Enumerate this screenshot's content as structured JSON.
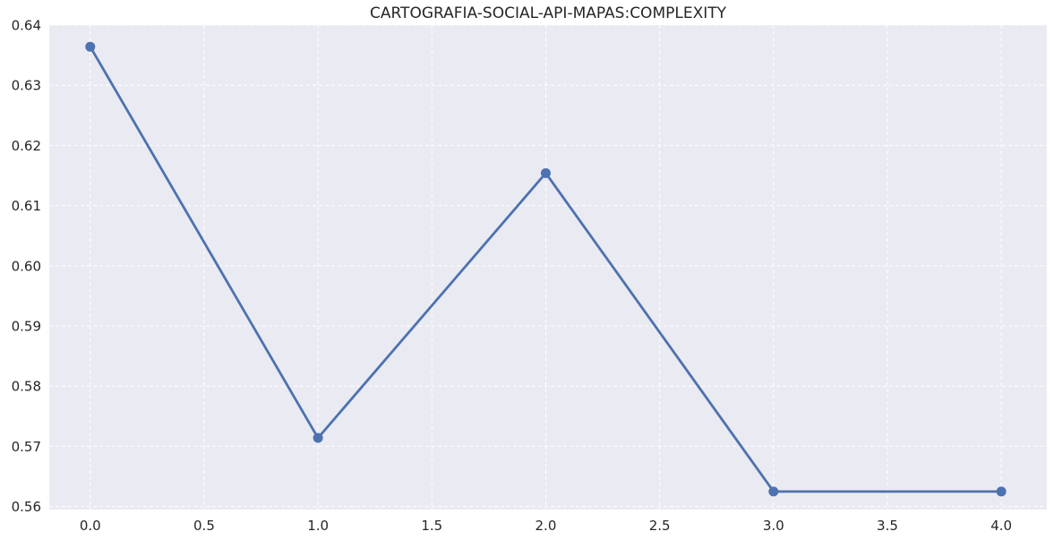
{
  "chart_data": {
    "type": "line",
    "title": "CARTOGRAFIA-SOCIAL-API-MAPAS:COMPLEXITY",
    "xlabel": "",
    "ylabel": "",
    "x": [
      0,
      1,
      2,
      3,
      4
    ],
    "series": [
      {
        "values": [
          0.6364,
          0.5714,
          0.6154,
          0.5625,
          0.5625
        ]
      }
    ],
    "xlim": [
      -0.18,
      4.2
    ],
    "ylim": [
      0.5595,
      0.64
    ],
    "xticks": [
      "0.0",
      "0.5",
      "1.0",
      "1.5",
      "2.0",
      "2.5",
      "3.0",
      "3.5",
      "4.0"
    ],
    "yticks": [
      "0.56",
      "0.57",
      "0.58",
      "0.59",
      "0.60",
      "0.61",
      "0.62",
      "0.63",
      "0.64"
    ],
    "grid": true,
    "legend": "none",
    "colors": {
      "series": "#4c72b0",
      "plot_background": "#eaeaf2",
      "grid": "#ffffff"
    }
  }
}
